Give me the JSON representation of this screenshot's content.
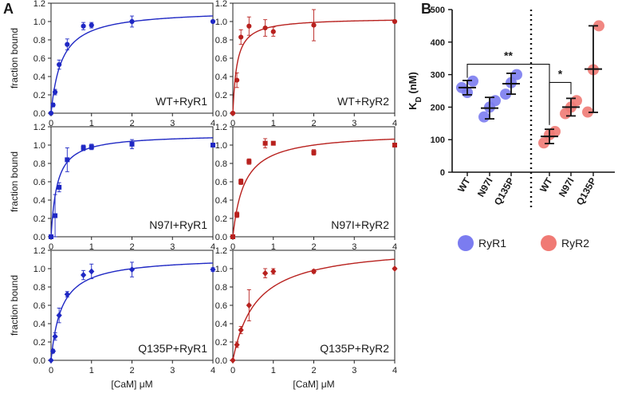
{
  "figure": {
    "panel_a_label": "A",
    "panel_b_label": "B",
    "colors": {
      "rr1": "#1f28c4",
      "rr2": "#b8211e",
      "rr1_dot": "#7b7cf0",
      "rr2_dot": "#f07a74"
    }
  },
  "chart_data": [
    {
      "type": "scatter",
      "panel": "A",
      "title": "WT+RyR1",
      "series_color": "rr1",
      "marker": "circle",
      "xlabel": "[CaM] μM",
      "ylabel": "fraction bound",
      "xlim": [
        0,
        4
      ],
      "ylim": [
        0,
        1.2
      ],
      "xticks": [
        "0",
        "1",
        "2",
        "3",
        "4"
      ],
      "yticks": [
        "0.0",
        "0.2",
        "0.4",
        "0.6",
        "0.8",
        "1.0",
        "1.2"
      ],
      "x": [
        0,
        0.05,
        0.1,
        0.2,
        0.4,
        0.8,
        1.0,
        2.0,
        4.0
      ],
      "y": [
        0,
        0.09,
        0.23,
        0.53,
        0.75,
        0.95,
        0.96,
        1.0,
        1.0
      ],
      "err": [
        0,
        0.02,
        0.03,
        0.05,
        0.06,
        0.04,
        0.03,
        0.06,
        0.01
      ],
      "fit": {
        "model": "hyperbolic",
        "bmax": 1.13,
        "kd": 0.26
      }
    },
    {
      "type": "scatter",
      "panel": "A",
      "title": "WT+RyR2",
      "series_color": "rr2",
      "marker": "circle",
      "xlabel": "[CaM] μM",
      "ylabel": "",
      "xlim": [
        0,
        4
      ],
      "ylim": [
        0,
        1.2
      ],
      "xticks": [
        "0",
        "1",
        "2",
        "3",
        "4"
      ],
      "yticks": [
        "0.0",
        "0.2",
        "0.4",
        "0.6",
        "0.8",
        "1.0",
        "1.2"
      ],
      "x": [
        0,
        0.1,
        0.2,
        0.4,
        0.8,
        1.0,
        2.0,
        4.0
      ],
      "y": [
        0,
        0.36,
        0.83,
        0.95,
        0.93,
        0.89,
        0.96,
        1.0
      ],
      "err": [
        0,
        0.08,
        0.08,
        0.1,
        0.09,
        0.05,
        0.17,
        0.01
      ],
      "fit": {
        "model": "hyperbolic",
        "bmax": 1.04,
        "kd": 0.1
      }
    },
    {
      "type": "scatter",
      "panel": "A",
      "title": "N97I+RyR1",
      "series_color": "rr1",
      "marker": "square",
      "xlabel": "[CaM] μM",
      "ylabel": "fraction bound",
      "xlim": [
        0,
        4
      ],
      "ylim": [
        0,
        1.2
      ],
      "xticks": [
        "0",
        "1",
        "2",
        "3",
        "4"
      ],
      "yticks": [
        "0.0",
        "0.2",
        "0.4",
        "0.6",
        "0.8",
        "1.0",
        "1.2"
      ],
      "x": [
        0,
        0.1,
        0.2,
        0.4,
        0.8,
        1.0,
        2.0,
        4.0
      ],
      "y": [
        0,
        0.23,
        0.54,
        0.84,
        0.97,
        0.98,
        1.01,
        1.0
      ],
      "err": [
        0,
        0.23,
        0.05,
        0.13,
        0.03,
        0.03,
        0.05,
        0.01
      ],
      "fit": {
        "model": "hyperbolic",
        "bmax": 1.12,
        "kd": 0.15
      }
    },
    {
      "type": "scatter",
      "panel": "A",
      "title": "N97I+RyR2",
      "series_color": "rr2",
      "marker": "square",
      "xlabel": "[CaM] μM",
      "ylabel": "",
      "xlim": [
        0,
        4
      ],
      "ylim": [
        0,
        1.2
      ],
      "xticks": [
        "0",
        "1",
        "2",
        "3",
        "4"
      ],
      "yticks": [
        "0.0",
        "0.2",
        "0.4",
        "0.6",
        "0.8",
        "1.0",
        "1.2"
      ],
      "x": [
        0,
        0.1,
        0.2,
        0.4,
        0.8,
        1.0,
        2.0,
        4.0
      ],
      "y": [
        0,
        0.24,
        0.6,
        0.82,
        1.02,
        1.02,
        0.92,
        1.0
      ],
      "err": [
        0,
        0.03,
        0.03,
        0.03,
        0.05,
        0.02,
        0.03,
        0.01
      ],
      "fit": {
        "model": "hyperbolic",
        "bmax": 1.14,
        "kd": 0.28
      }
    },
    {
      "type": "scatter",
      "panel": "A",
      "title": "Q135P+RyR1",
      "series_color": "rr1",
      "marker": "diamond",
      "xlabel": "[CaM] μM",
      "ylabel": "fraction bound",
      "xlim": [
        0,
        4
      ],
      "ylim": [
        0,
        1.2
      ],
      "xticks": [
        "0",
        "1",
        "2",
        "3",
        "4"
      ],
      "yticks": [
        "0.0",
        "0.2",
        "0.4",
        "0.6",
        "0.8",
        "1.0",
        "1.2"
      ],
      "x": [
        0,
        0.05,
        0.1,
        0.2,
        0.4,
        0.8,
        1.0,
        2.0,
        4.0
      ],
      "y": [
        0,
        0.1,
        0.26,
        0.49,
        0.72,
        0.93,
        0.97,
        0.99,
        0.99
      ],
      "err": [
        0,
        0.02,
        0.04,
        0.08,
        0.03,
        0.05,
        0.08,
        0.08,
        0.02
      ],
      "fit": {
        "model": "hyperbolic",
        "bmax": 1.13,
        "kd": 0.26
      }
    },
    {
      "type": "scatter",
      "panel": "A",
      "title": "Q135P+RyR2",
      "series_color": "rr2",
      "marker": "diamond",
      "xlabel": "[CaM] μM",
      "ylabel": "",
      "xlim": [
        0,
        4
      ],
      "ylim": [
        0,
        1.2
      ],
      "xticks": [
        "0",
        "1",
        "2",
        "3",
        "4"
      ],
      "yticks": [
        "0.0",
        "0.2",
        "0.4",
        "0.6",
        "0.8",
        "1.0",
        "1.2"
      ],
      "x": [
        0,
        0.1,
        0.2,
        0.4,
        0.8,
        1.0,
        2.0,
        4.0
      ],
      "y": [
        0,
        0.17,
        0.33,
        0.6,
        0.95,
        0.97,
        0.97,
        1.0
      ],
      "err": [
        0,
        0.03,
        0.04,
        0.17,
        0.05,
        0.03,
        0.02,
        0.01
      ],
      "fit": {
        "model": "hyperbolic",
        "bmax": 1.26,
        "kd": 0.57
      }
    },
    {
      "type": "scatter",
      "panel": "B",
      "ylabel": "K_D (nM)",
      "ylabel_main": "K",
      "ylabel_sub": "D",
      "ylabel_unit": " (nM)",
      "ylim": [
        0,
        500
      ],
      "yticks": [
        "0",
        "100",
        "200",
        "300",
        "400",
        "500"
      ],
      "categories": [
        "WT",
        "N97I",
        "Q135P",
        "WT",
        "N97I",
        "Q135P"
      ],
      "groups": [
        {
          "name": "RyR1",
          "color": "rr1_dot",
          "points": [
            [
              260,
              280,
              245
            ],
            [
              170,
              220,
              200
            ],
            [
              240,
              300,
              275
            ]
          ],
          "mean": [
            260,
            197,
            272
          ],
          "sd": [
            22,
            33,
            32
          ]
        },
        {
          "name": "RyR2",
          "color": "rr2_dot",
          "points": [
            [
              90,
              125,
              115
            ],
            [
              180,
              220,
              200
            ],
            [
              185,
              450,
              315
            ]
          ],
          "mean": [
            110,
            200,
            317
          ],
          "sd": [
            22,
            27,
            133
          ]
        }
      ],
      "significance": [
        {
          "from_category": 0,
          "to_category": 3,
          "label": "**"
        },
        {
          "from_category": 3,
          "to_category": 4,
          "label": "*"
        }
      ],
      "legend": [
        {
          "label": "RyR1",
          "color": "rr1_dot"
        },
        {
          "label": "RyR2",
          "color": "rr2_dot"
        }
      ]
    }
  ]
}
